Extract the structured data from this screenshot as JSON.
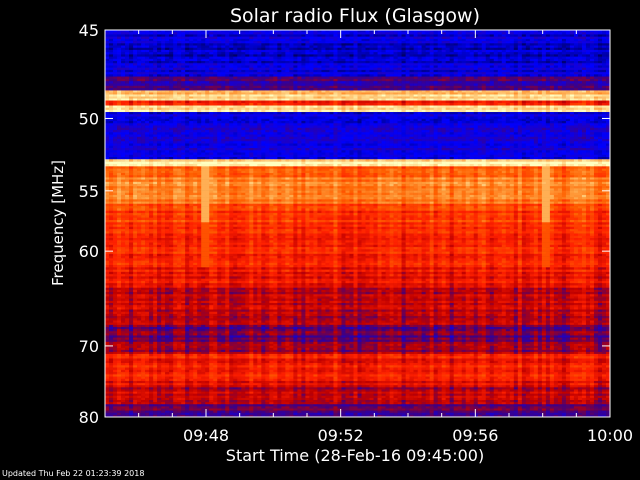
{
  "chart_data": {
    "type": "heatmap",
    "title": "Solar radio Flux (Glasgow)",
    "xlabel": "Start Time (28-Feb-16 09:45:00)",
    "ylabel": "Frequency [MHz]",
    "x_unit": "minutes after 09:45:00",
    "xlim": [
      0,
      15
    ],
    "ylim": [
      45,
      80
    ],
    "y_scale": "reciprocal",
    "x_ticks": [
      {
        "value": 3,
        "label": "09:48"
      },
      {
        "value": 7,
        "label": "09:52"
      },
      {
        "value": 11,
        "label": "09:56"
      },
      {
        "value": 15,
        "label": "10:00"
      }
    ],
    "y_ticks": [
      {
        "value": 45,
        "label": "45"
      },
      {
        "value": 50,
        "label": "50"
      },
      {
        "value": 55,
        "label": "55"
      },
      {
        "value": 60,
        "label": "60"
      },
      {
        "value": 70,
        "label": "70"
      },
      {
        "value": 80,
        "label": "80"
      }
    ],
    "colormap": [
      "#000060",
      "#0000ff",
      "#400080",
      "#c00000",
      "#ff2000",
      "#ff6000",
      "#ffa040",
      "#ffffc0"
    ],
    "frequency_bands": [
      {
        "from": 45.0,
        "to": 47.5,
        "intensity": 0.12
      },
      {
        "from": 47.5,
        "to": 48.3,
        "intensity": 0.28
      },
      {
        "from": 48.3,
        "to": 48.9,
        "intensity": 0.92
      },
      {
        "from": 48.9,
        "to": 49.2,
        "intensity": 0.55
      },
      {
        "from": 49.2,
        "to": 49.6,
        "intensity": 0.98
      },
      {
        "from": 49.6,
        "to": 52.7,
        "intensity": 0.15
      },
      {
        "from": 52.7,
        "to": 53.2,
        "intensity": 0.97
      },
      {
        "from": 53.2,
        "to": 54.0,
        "intensity": 0.72
      },
      {
        "from": 54.0,
        "to": 56.0,
        "intensity": 0.78
      },
      {
        "from": 56.0,
        "to": 57.5,
        "intensity": 0.62
      },
      {
        "from": 57.5,
        "to": 61.5,
        "intensity": 0.58
      },
      {
        "from": 61.5,
        "to": 63.5,
        "intensity": 0.52
      },
      {
        "from": 63.5,
        "to": 67.5,
        "intensity": 0.44
      },
      {
        "from": 67.5,
        "to": 69.5,
        "intensity": 0.32
      },
      {
        "from": 69.5,
        "to": 71.0,
        "intensity": 0.4
      },
      {
        "from": 71.0,
        "to": 74.0,
        "intensity": 0.55
      },
      {
        "from": 74.0,
        "to": 75.5,
        "intensity": 0.5
      },
      {
        "from": 75.5,
        "to": 78.0,
        "intensity": 0.42
      },
      {
        "from": 78.0,
        "to": 80.0,
        "intensity": 0.3
      }
    ],
    "time_bursts": [
      {
        "t": 3.0,
        "intensity": 0.88
      },
      {
        "t": 13.1,
        "intensity": 0.88
      }
    ]
  },
  "footer": {
    "updated": "Updated Thu Feb 22 01:23:39 2018"
  }
}
